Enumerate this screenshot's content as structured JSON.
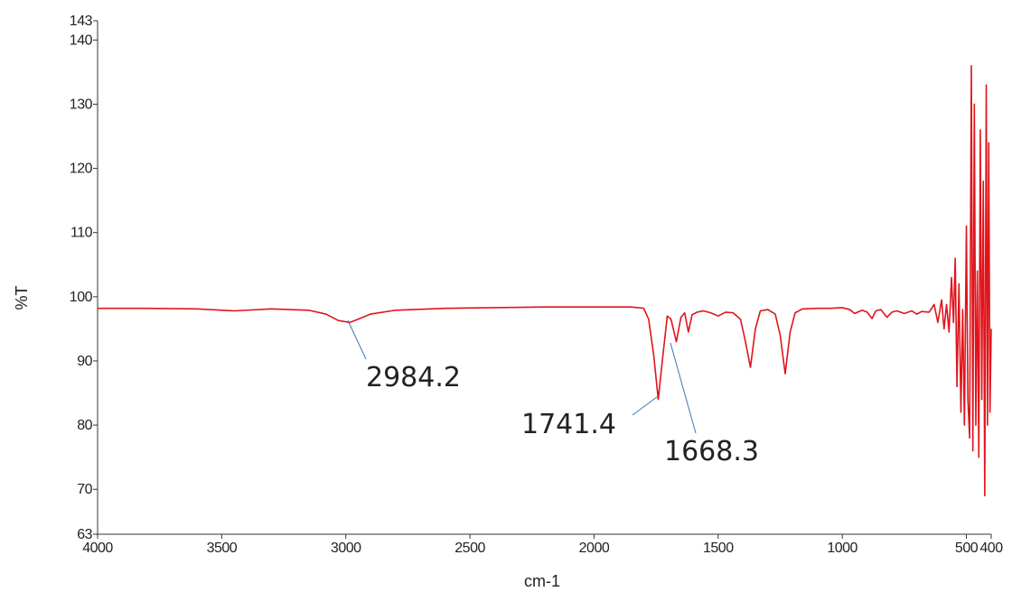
{
  "chart_data": {
    "type": "line",
    "xlabel": "cm-1",
    "ylabel": "%T",
    "color": "#e0141c",
    "xlim": [
      4000,
      400
    ],
    "xticks": [
      4000,
      3500,
      3000,
      2500,
      2000,
      1500,
      1000,
      500,
      400
    ],
    "ylim": [
      63,
      143
    ],
    "yticks": [
      63,
      70,
      80,
      90,
      100,
      110,
      120,
      130,
      140,
      143
    ],
    "grid": false,
    "x": [
      4000,
      3800,
      3600,
      3450,
      3300,
      3150,
      3080,
      3030,
      2984.2,
      2950,
      2900,
      2800,
      2600,
      2400,
      2200,
      2000,
      1850,
      1800,
      1780,
      1760,
      1741.4,
      1725,
      1705,
      1690,
      1668.3,
      1650,
      1635,
      1620,
      1605,
      1585,
      1560,
      1530,
      1500,
      1470,
      1440,
      1410,
      1390,
      1370,
      1350,
      1330,
      1300,
      1270,
      1250,
      1230,
      1210,
      1190,
      1160,
      1100,
      1050,
      1000,
      970,
      950,
      920,
      900,
      880,
      865,
      845,
      820,
      800,
      780,
      750,
      720,
      700,
      680,
      650,
      630,
      615,
      600,
      590,
      580,
      570,
      560,
      552,
      545,
      538,
      530,
      522,
      515,
      508,
      500,
      494,
      487,
      480,
      474,
      468,
      462,
      456,
      450,
      444,
      438,
      432,
      426,
      420,
      415,
      410,
      405,
      400
    ],
    "values": [
      98.2,
      98.2,
      98.1,
      97.8,
      98.1,
      97.9,
      97.3,
      96.3,
      96,
      96.5,
      97.3,
      97.9,
      98.2,
      98.3,
      98.4,
      98.4,
      98.4,
      98.2,
      96.5,
      91,
      84,
      90,
      97,
      96.5,
      93,
      96.8,
      97.5,
      94.5,
      97.2,
      97.6,
      97.8,
      97.5,
      97,
      97.6,
      97.5,
      96.5,
      93,
      89,
      95,
      97.8,
      98,
      97.3,
      94,
      88,
      94.5,
      97.5,
      98.1,
      98.2,
      98.2,
      98.3,
      98,
      97.4,
      97.9,
      97.6,
      96.6,
      97.8,
      98,
      96.8,
      97.6,
      97.8,
      97.4,
      97.8,
      97.3,
      97.7,
      97.6,
      98.8,
      96,
      99.5,
      95,
      98.8,
      94.5,
      103,
      96,
      106,
      86,
      102,
      82,
      98,
      80,
      111,
      84,
      78,
      136,
      76,
      130,
      80,
      104,
      75,
      126,
      84,
      118,
      69,
      133,
      80,
      124,
      82,
      95
    ],
    "annotations": [
      "2984.2",
      "1741.4",
      "1668.3"
    ]
  }
}
